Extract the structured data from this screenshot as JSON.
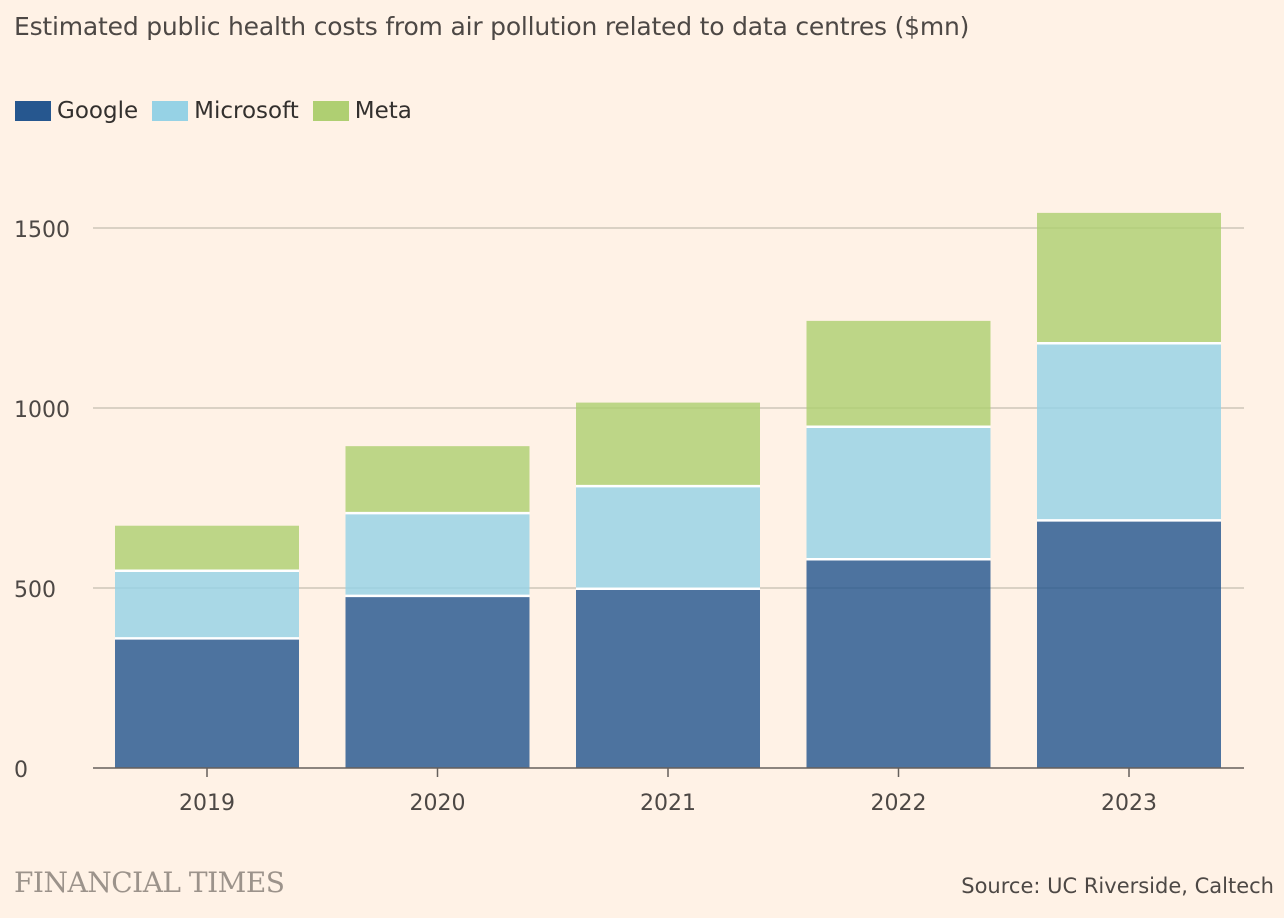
{
  "header": {
    "title": "Estimated public health costs from air pollution related to data centres ($mn)"
  },
  "legend": {
    "items": [
      {
        "label": "Google",
        "color": "#26578f"
      },
      {
        "label": "Microsoft",
        "color": "#96d2e5"
      },
      {
        "label": "Meta",
        "color": "#afcf72"
      }
    ]
  },
  "footer": {
    "brand": "FINANCIAL TIMES",
    "source": "Source: UC Riverside, Caltech"
  },
  "chart_data": {
    "type": "bar",
    "stacked": true,
    "title": "Estimated public health costs from air pollution related to data centres ($mn)",
    "xlabel": "",
    "ylabel": "",
    "categories": [
      "2019",
      "2020",
      "2021",
      "2022",
      "2023"
    ],
    "series": [
      {
        "name": "Google",
        "color": "#26578f",
        "values": [
          360,
          478,
          498,
          580,
          688
        ]
      },
      {
        "name": "Microsoft",
        "color": "#96d2e5",
        "values": [
          188,
          230,
          285,
          368,
          492
        ]
      },
      {
        "name": "Meta",
        "color": "#afcf72",
        "values": [
          125,
          186,
          232,
          294,
          362
        ]
      }
    ],
    "ylim": [
      0,
      1500
    ],
    "yticks": [
      0,
      500,
      1000,
      1500
    ],
    "grid": true,
    "legend_position": "top-left"
  }
}
